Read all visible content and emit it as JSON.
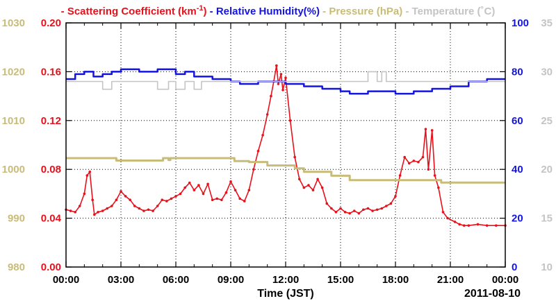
{
  "colors": {
    "scattering": "#e8101a",
    "humidity": "#1414e0",
    "pressure": "#c8bc78",
    "temperature": "#c4c4c4",
    "grid": "#000000"
  },
  "legend": [
    {
      "dash": "-",
      "label": "Scattering Coefficient (km",
      "sup": "-1",
      "tail": ")",
      "color_key": "scattering"
    },
    {
      "dash": "-",
      "label": "Relative Humidity(%)",
      "sup": "",
      "tail": "",
      "color_key": "humidity"
    },
    {
      "dash": "-",
      "label": "Pressure (hPa)",
      "sup": "",
      "tail": "",
      "color_key": "pressure"
    },
    {
      "dash": "-",
      "label": "Temperature (˚C)",
      "sup": "",
      "tail": "",
      "color_key": "temperature"
    }
  ],
  "chart_data": {
    "type": "line",
    "xlabel": "Time (JST)",
    "date_label": "2011-08-10",
    "x_tick_labels": [
      "00:00",
      "03:00",
      "06:00",
      "09:00",
      "12:00",
      "15:00",
      "18:00",
      "21:00",
      "00:00"
    ],
    "xlim_hours": [
      0,
      24
    ],
    "grid": true,
    "axes": {
      "pressure": {
        "side": "left-outer",
        "ylim": [
          980,
          1030
        ],
        "ticks": [
          "980",
          "990",
          "1000",
          "1010",
          "1020",
          "1030"
        ]
      },
      "scattering": {
        "side": "left-inner",
        "ylim": [
          0.0,
          0.2
        ],
        "ticks": [
          "0.00",
          "0.04",
          "0.08",
          "0.12",
          "0.16",
          "0.20"
        ]
      },
      "humidity": {
        "side": "right-inner",
        "ylim": [
          0,
          100
        ],
        "ticks": [
          "0",
          "20",
          "40",
          "60",
          "80",
          "100"
        ]
      },
      "temperature": {
        "side": "right-outer",
        "ylim": [
          10,
          35
        ],
        "ticks": [
          "10",
          "15",
          "20",
          "25",
          "30",
          "35"
        ]
      }
    },
    "series": [
      {
        "name": "Scattering Coefficient",
        "axis": "scattering",
        "style": "line-markers",
        "points": [
          [
            0,
            0.047
          ],
          [
            0.25,
            0.046
          ],
          [
            0.5,
            0.045
          ],
          [
            0.75,
            0.05
          ],
          [
            1.0,
            0.06
          ],
          [
            1.15,
            0.075
          ],
          [
            1.3,
            0.078
          ],
          [
            1.45,
            0.055
          ],
          [
            1.55,
            0.043
          ],
          [
            1.75,
            0.045
          ],
          [
            2.0,
            0.046
          ],
          [
            2.25,
            0.048
          ],
          [
            2.5,
            0.05
          ],
          [
            2.75,
            0.055
          ],
          [
            3.0,
            0.062
          ],
          [
            3.25,
            0.058
          ],
          [
            3.5,
            0.055
          ],
          [
            3.75,
            0.05
          ],
          [
            4.0,
            0.048
          ],
          [
            4.25,
            0.046
          ],
          [
            4.5,
            0.047
          ],
          [
            4.75,
            0.046
          ],
          [
            5.0,
            0.05
          ],
          [
            5.25,
            0.055
          ],
          [
            5.5,
            0.054
          ],
          [
            5.75,
            0.056
          ],
          [
            6.0,
            0.058
          ],
          [
            6.25,
            0.06
          ],
          [
            6.5,
            0.065
          ],
          [
            6.75,
            0.069
          ],
          [
            7.0,
            0.063
          ],
          [
            7.25,
            0.067
          ],
          [
            7.5,
            0.06
          ],
          [
            7.75,
            0.068
          ],
          [
            8.0,
            0.055
          ],
          [
            8.25,
            0.056
          ],
          [
            8.5,
            0.055
          ],
          [
            8.75,
            0.061
          ],
          [
            9.0,
            0.07
          ],
          [
            9.25,
            0.063
          ],
          [
            9.5,
            0.056
          ],
          [
            9.75,
            0.054
          ],
          [
            10.0,
            0.063
          ],
          [
            10.25,
            0.08
          ],
          [
            10.5,
            0.095
          ],
          [
            10.75,
            0.108
          ],
          [
            11.0,
            0.125
          ],
          [
            11.2,
            0.14
          ],
          [
            11.35,
            0.152
          ],
          [
            11.5,
            0.165
          ],
          [
            11.6,
            0.15
          ],
          [
            11.75,
            0.158
          ],
          [
            11.85,
            0.145
          ],
          [
            12.0,
            0.155
          ],
          [
            12.25,
            0.12
          ],
          [
            12.5,
            0.09
          ],
          [
            12.75,
            0.072
          ],
          [
            13.0,
            0.065
          ],
          [
            13.25,
            0.067
          ],
          [
            13.5,
            0.063
          ],
          [
            13.75,
            0.072
          ],
          [
            14.0,
            0.065
          ],
          [
            14.25,
            0.052
          ],
          [
            14.5,
            0.048
          ],
          [
            14.75,
            0.045
          ],
          [
            15.0,
            0.048
          ],
          [
            15.25,
            0.045
          ],
          [
            15.5,
            0.044
          ],
          [
            15.75,
            0.046
          ],
          [
            16.0,
            0.044
          ],
          [
            16.25,
            0.047
          ],
          [
            16.5,
            0.048
          ],
          [
            16.75,
            0.046
          ],
          [
            17.0,
            0.047
          ],
          [
            17.25,
            0.048
          ],
          [
            17.5,
            0.05
          ],
          [
            17.75,
            0.052
          ],
          [
            18.0,
            0.058
          ],
          [
            18.25,
            0.075
          ],
          [
            18.5,
            0.09
          ],
          [
            18.75,
            0.085
          ],
          [
            19.0,
            0.087
          ],
          [
            19.25,
            0.086
          ],
          [
            19.5,
            0.09
          ],
          [
            19.65,
            0.113
          ],
          [
            19.8,
            0.08
          ],
          [
            20.0,
            0.112
          ],
          [
            20.15,
            0.075
          ],
          [
            20.35,
            0.065
          ],
          [
            20.6,
            0.045
          ],
          [
            20.85,
            0.04
          ],
          [
            21.25,
            0.037
          ],
          [
            21.5,
            0.035
          ],
          [
            21.75,
            0.034
          ],
          [
            22.0,
            0.034
          ],
          [
            22.5,
            0.035
          ],
          [
            23.0,
            0.034
          ],
          [
            23.5,
            0.034
          ],
          [
            24.0,
            0.034
          ]
        ]
      },
      {
        "name": "Relative Humidity",
        "axis": "humidity",
        "style": "step",
        "points": [
          [
            0,
            77
          ],
          [
            0.5,
            79
          ],
          [
            1.0,
            80
          ],
          [
            1.5,
            78
          ],
          [
            2.0,
            79
          ],
          [
            2.5,
            80
          ],
          [
            3.0,
            81
          ],
          [
            4.0,
            80
          ],
          [
            5.0,
            81
          ],
          [
            6.0,
            79
          ],
          [
            6.5,
            80
          ],
          [
            7.0,
            78
          ],
          [
            8.0,
            77
          ],
          [
            8.5,
            77
          ],
          [
            9.0,
            76
          ],
          [
            9.5,
            75
          ],
          [
            10.5,
            76
          ],
          [
            11.5,
            76
          ],
          [
            12.0,
            75
          ],
          [
            13.0,
            74
          ],
          [
            14.0,
            73
          ],
          [
            15.0,
            72
          ],
          [
            15.5,
            71
          ],
          [
            16.5,
            72
          ],
          [
            17.5,
            72
          ],
          [
            18.0,
            71
          ],
          [
            19.0,
            72
          ],
          [
            20.0,
            73
          ],
          [
            21.0,
            74
          ],
          [
            22.0,
            76
          ],
          [
            23.0,
            77
          ],
          [
            24.0,
            77
          ]
        ]
      },
      {
        "name": "Pressure",
        "axis": "pressure",
        "style": "step",
        "points": [
          [
            0,
            1002.3
          ],
          [
            2.75,
            1001.8
          ],
          [
            5.3,
            1002.3
          ],
          [
            5.6,
            1001.9
          ],
          [
            5.7,
            1002.3
          ],
          [
            9.2,
            1001.7
          ],
          [
            10.0,
            1001.5
          ],
          [
            11.0,
            1000.8
          ],
          [
            12.5,
            1000.2
          ],
          [
            13.0,
            999.5
          ],
          [
            14.5,
            998.7
          ],
          [
            15.5,
            997.8
          ],
          [
            17.5,
            997.8
          ],
          [
            18.5,
            997.8
          ],
          [
            20.5,
            997.3
          ],
          [
            24.0,
            997.3
          ]
        ]
      },
      {
        "name": "Temperature",
        "axis": "temperature",
        "style": "step",
        "points": [
          [
            0,
            29.0
          ],
          [
            2.0,
            28.2
          ],
          [
            2.5,
            29.0
          ],
          [
            5.0,
            28.2
          ],
          [
            5.6,
            29.0
          ],
          [
            6.0,
            28.2
          ],
          [
            6.5,
            29.0
          ],
          [
            7.0,
            28.2
          ],
          [
            7.4,
            29.0
          ],
          [
            11.5,
            29.0
          ],
          [
            16.25,
            29.0
          ],
          [
            16.5,
            30.0
          ],
          [
            17.0,
            29.0
          ],
          [
            17.25,
            30.0
          ],
          [
            17.5,
            29.0
          ],
          [
            24.0,
            29.0
          ]
        ]
      }
    ]
  }
}
